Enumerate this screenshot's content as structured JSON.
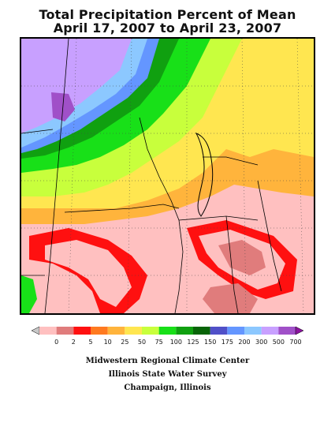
{
  "title": {
    "line1": "Total Precipitation Percent of Mean",
    "line2": "April 17, 2007 to April 23, 2007"
  },
  "legend": {
    "labels": [
      "0",
      "2",
      "5",
      "10",
      "25",
      "50",
      "75",
      "100",
      "125",
      "150",
      "175",
      "200",
      "300",
      "500",
      "700"
    ],
    "colors": [
      "#c8c8c8",
      "#ffc0c0",
      "#e07c7c",
      "#ff1010",
      "#ff7a20",
      "#ffb43c",
      "#ffe650",
      "#c8ff3c",
      "#18e018",
      "#10a010",
      "#086408",
      "#5050c8",
      "#6496ff",
      "#8cc8ff",
      "#c8a0ff",
      "#a050c8",
      "#8c14a0"
    ]
  },
  "credits": {
    "line1": "Midwestern Regional Climate Center",
    "line2": "Illinois State Water Survey",
    "line3": "Champaign, Illinois"
  }
}
